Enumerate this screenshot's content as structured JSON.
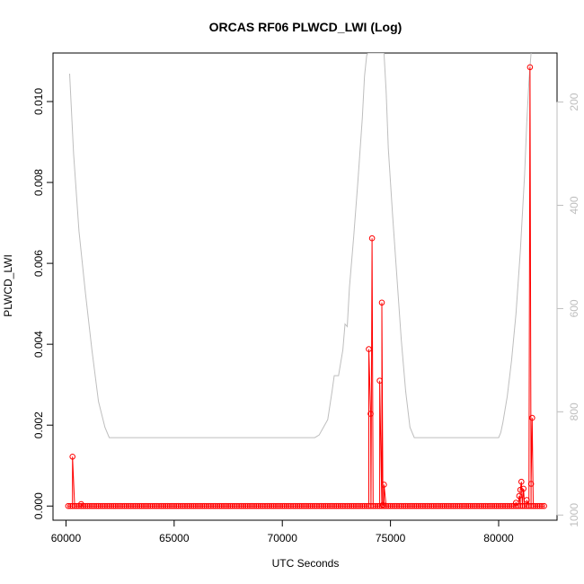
{
  "chart_data": {
    "type": "line",
    "title": "ORCAS RF06 PLWCD_LWI (Log)",
    "xlabel": "UTC Seconds",
    "ylabel": "PLWCD_LWI",
    "xlim": [
      59400,
      82700
    ],
    "ylim": [
      -0.00035,
      0.0112
    ],
    "x_ticks": [
      60000,
      65000,
      70000,
      75000,
      80000
    ],
    "x_tick_labels": [
      "60000",
      "65000",
      "70000",
      "75000",
      "80000"
    ],
    "y_ticks": [
      0.0,
      0.002,
      0.004,
      0.006,
      0.008,
      0.01
    ],
    "y_tick_labels": [
      "0.000",
      "0.002",
      "0.004",
      "0.006",
      "0.008",
      "0.010"
    ],
    "y2_ticks": [
      200,
      400,
      600,
      800,
      1000
    ],
    "y2_tick_labels": [
      "200",
      "400",
      "600",
      "800",
      "1000"
    ],
    "y2lim": [
      1010,
      105
    ],
    "series": [
      {
        "color": "#ff0000",
        "marker": "open-circle",
        "x_start": 60100,
        "x_end": 82100,
        "baseline_value": 0.0,
        "baseline_step": 100,
        "spikes": [
          {
            "x": 60300,
            "y": 0.00122
          },
          {
            "x": 60700,
            "y": 5e-05
          },
          {
            "x": 74000,
            "y": 0.00388
          },
          {
            "x": 74080,
            "y": 0.00228
          },
          {
            "x": 74150,
            "y": 0.00662
          },
          {
            "x": 74500,
            "y": 0.0031
          },
          {
            "x": 74600,
            "y": 0.00503
          },
          {
            "x": 74700,
            "y": 0.00053
          },
          {
            "x": 74650,
            "y": 3e-05
          },
          {
            "x": 80800,
            "y": 8e-05
          },
          {
            "x": 80950,
            "y": 0.00025
          },
          {
            "x": 81000,
            "y": 0.0004
          },
          {
            "x": 81050,
            "y": 0.0006
          },
          {
            "x": 81150,
            "y": 0.00043
          },
          {
            "x": 81300,
            "y": 0.00015
          },
          {
            "x": 81450,
            "y": 0.01085
          },
          {
            "x": 81500,
            "y": 0.00055
          },
          {
            "x": 81550,
            "y": 0.00218
          }
        ]
      },
      {
        "color": "#bebebe",
        "axis": "right",
        "x": [
          60170,
          60350,
          60600,
          60900,
          61200,
          61500,
          61800,
          62000,
          63000,
          65000,
          68000,
          70000,
          71500,
          71700,
          71900,
          72100,
          72300,
          72400,
          72600,
          72800,
          72900,
          73000,
          73100,
          73300,
          73500,
          73700,
          73800,
          73900,
          73950,
          74700,
          74800,
          74900,
          75100,
          75300,
          75500,
          75700,
          75900,
          76100,
          76200,
          77000,
          78000,
          79000,
          80000,
          80100,
          80200,
          80400,
          80600,
          80800,
          81000,
          81200,
          81300,
          81400,
          81500
        ],
        "y": [
          145,
          300,
          450,
          570,
          680,
          780,
          830,
          850,
          850,
          850,
          850,
          850,
          850,
          845,
          830,
          815,
          760,
          730,
          730,
          680,
          630,
          635,
          560,
          460,
          350,
          230,
          150,
          110,
          105,
          105,
          180,
          290,
          420,
          540,
          660,
          760,
          830,
          850,
          850,
          850,
          850,
          850,
          850,
          840,
          820,
          770,
          700,
          610,
          490,
          340,
          240,
          160,
          105
        ]
      }
    ],
    "grid": false
  }
}
